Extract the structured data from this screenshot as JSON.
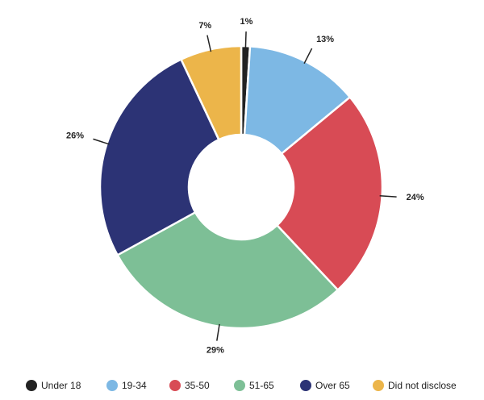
{
  "chart_data": {
    "type": "donut",
    "categories": [
      "Under 18",
      "19-34",
      "35-50",
      "51-65",
      "Over 65",
      "Did not disclose"
    ],
    "values": [
      1,
      13,
      24,
      29,
      26,
      7
    ],
    "value_labels": [
      "1%",
      "13%",
      "24%",
      "29%",
      "26%",
      "7%"
    ],
    "colors": [
      "#222222",
      "#7db8e4",
      "#d84b55",
      "#7dbf96",
      "#2c3375",
      "#ecb54a"
    ],
    "legend": "bottom"
  }
}
